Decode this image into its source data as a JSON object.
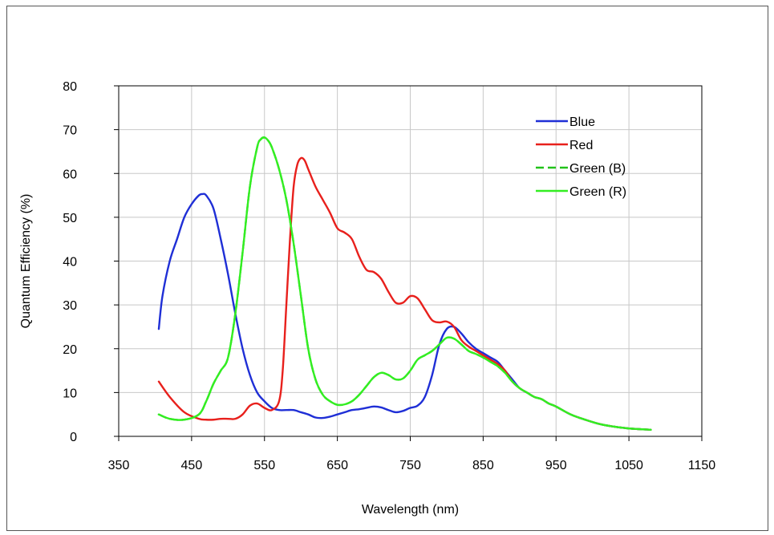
{
  "chart_data": {
    "type": "line",
    "title": "",
    "xlabel": "Wavelength (nm)",
    "ylabel": "Quantum Efficiency  (%)",
    "xlim": [
      350,
      1150
    ],
    "ylim": [
      0,
      80
    ],
    "x_ticks": [
      350,
      450,
      550,
      650,
      750,
      850,
      950,
      1050,
      1150
    ],
    "y_ticks": [
      0,
      10,
      20,
      30,
      40,
      50,
      60,
      70,
      80
    ],
    "grid": true,
    "legend_position": "top-right",
    "series": [
      {
        "name": "Blue",
        "color": "#1f2fd6",
        "dash": "solid",
        "x": [
          405,
          410,
          420,
          430,
          440,
          450,
          460,
          465,
          470,
          480,
          490,
          500,
          510,
          520,
          530,
          540,
          550,
          560,
          570,
          580,
          590,
          600,
          610,
          620,
          630,
          640,
          650,
          660,
          670,
          680,
          690,
          700,
          710,
          720,
          730,
          740,
          750,
          760,
          770,
          780,
          790,
          800,
          810,
          820,
          830,
          840,
          850,
          860,
          870,
          880,
          890,
          900,
          910,
          920,
          930,
          940,
          950,
          970,
          990,
          1010,
          1030,
          1050,
          1080
        ],
        "y": [
          24.5,
          32,
          40,
          45,
          50,
          53,
          55,
          55.3,
          55,
          52,
          45,
          37,
          28,
          20,
          14,
          10,
          8,
          6.5,
          6,
          6,
          6,
          5.5,
          5,
          4.3,
          4.2,
          4.5,
          5,
          5.5,
          6,
          6.2,
          6.5,
          6.8,
          6.6,
          6,
          5.5,
          5.8,
          6.5,
          7,
          9,
          14,
          21,
          24.5,
          25,
          23.5,
          21.5,
          20,
          19,
          18,
          17,
          15,
          13,
          11,
          10,
          9,
          8.5,
          7.5,
          6.8,
          5,
          3.8,
          2.8,
          2.2,
          1.8,
          1.5
        ]
      },
      {
        "name": "Red",
        "color": "#e8201c",
        "dash": "solid",
        "x": [
          405,
          420,
          440,
          460,
          470,
          480,
          490,
          500,
          510,
          520,
          530,
          540,
          550,
          560,
          570,
          575,
          580,
          585,
          590,
          595,
          600,
          605,
          610,
          620,
          630,
          640,
          650,
          660,
          670,
          680,
          690,
          700,
          710,
          720,
          730,
          740,
          750,
          760,
          770,
          780,
          790,
          800,
          810,
          820,
          830,
          840,
          850,
          860,
          870,
          880,
          890,
          900,
          910,
          920,
          930,
          940,
          950,
          970,
          990,
          1010,
          1030,
          1050,
          1080
        ],
        "y": [
          12.5,
          9,
          5.5,
          4,
          3.8,
          3.8,
          4,
          4,
          4,
          5,
          7,
          7.5,
          6.5,
          6,
          8,
          15,
          30,
          45,
          57,
          62,
          63.5,
          63,
          61,
          57,
          54,
          51,
          47.5,
          46.5,
          45,
          41,
          38,
          37.5,
          36,
          33,
          30.5,
          30.5,
          32,
          31.5,
          29,
          26.5,
          26,
          26.2,
          25,
          22,
          20.5,
          19.5,
          18.5,
          17.5,
          16.5,
          15,
          12.5,
          11,
          10,
          9,
          8.5,
          7.5,
          6.8,
          5,
          3.8,
          2.8,
          2.2,
          1.8,
          1.5
        ]
      },
      {
        "name": "Green (B)",
        "color": "#22c21a",
        "dash": "dashed",
        "x": [
          405,
          420,
          440,
          460,
          470,
          480,
          490,
          500,
          510,
          520,
          530,
          540,
          545,
          550,
          555,
          560,
          570,
          580,
          590,
          600,
          610,
          620,
          630,
          640,
          650,
          660,
          670,
          680,
          690,
          700,
          710,
          720,
          730,
          740,
          750,
          760,
          770,
          780,
          790,
          800,
          810,
          820,
          830,
          840,
          850,
          860,
          870,
          880,
          890,
          900,
          910,
          920,
          930,
          940,
          950,
          970,
          990,
          1010,
          1030,
          1050,
          1080
        ],
        "y": [
          5,
          4,
          3.8,
          5,
          8,
          12,
          15,
          18,
          28,
          42,
          57,
          66,
          67.8,
          68.2,
          67.5,
          66,
          61,
          54,
          44,
          32,
          20,
          13,
          9.5,
          8,
          7.2,
          7.3,
          8,
          9.5,
          11.5,
          13.5,
          14.5,
          14,
          13,
          13.2,
          15,
          17.5,
          18.5,
          19.5,
          21,
          22.5,
          22.3,
          21,
          19.5,
          18.8,
          18,
          17,
          16,
          14.5,
          12.5,
          11,
          10,
          9,
          8.5,
          7.5,
          6.8,
          5,
          3.8,
          2.8,
          2.2,
          1.8,
          1.5
        ]
      },
      {
        "name": "Green (R)",
        "color": "#33ee22",
        "dash": "solid",
        "x": [
          405,
          420,
          440,
          460,
          470,
          480,
          490,
          500,
          510,
          520,
          530,
          540,
          545,
          550,
          555,
          560,
          570,
          580,
          590,
          600,
          610,
          620,
          630,
          640,
          650,
          660,
          670,
          680,
          690,
          700,
          710,
          720,
          730,
          740,
          750,
          760,
          770,
          780,
          790,
          800,
          810,
          820,
          830,
          840,
          850,
          860,
          870,
          880,
          890,
          900,
          910,
          920,
          930,
          940,
          950,
          970,
          990,
          1010,
          1030,
          1050,
          1080
        ],
        "y": [
          5,
          4,
          3.8,
          5,
          8,
          12,
          15,
          18,
          28,
          42,
          57,
          66,
          67.8,
          68.2,
          67.5,
          66,
          61,
          54,
          44,
          32,
          20,
          13,
          9.5,
          8,
          7.2,
          7.3,
          8,
          9.5,
          11.5,
          13.5,
          14.5,
          14,
          13,
          13.2,
          15,
          17.5,
          18.5,
          19.5,
          21,
          22.5,
          22.3,
          21,
          19.5,
          18.8,
          18,
          17,
          16,
          14.5,
          12.5,
          11,
          10,
          9,
          8.5,
          7.5,
          6.8,
          5,
          3.8,
          2.8,
          2.2,
          1.8,
          1.5
        ]
      }
    ]
  }
}
